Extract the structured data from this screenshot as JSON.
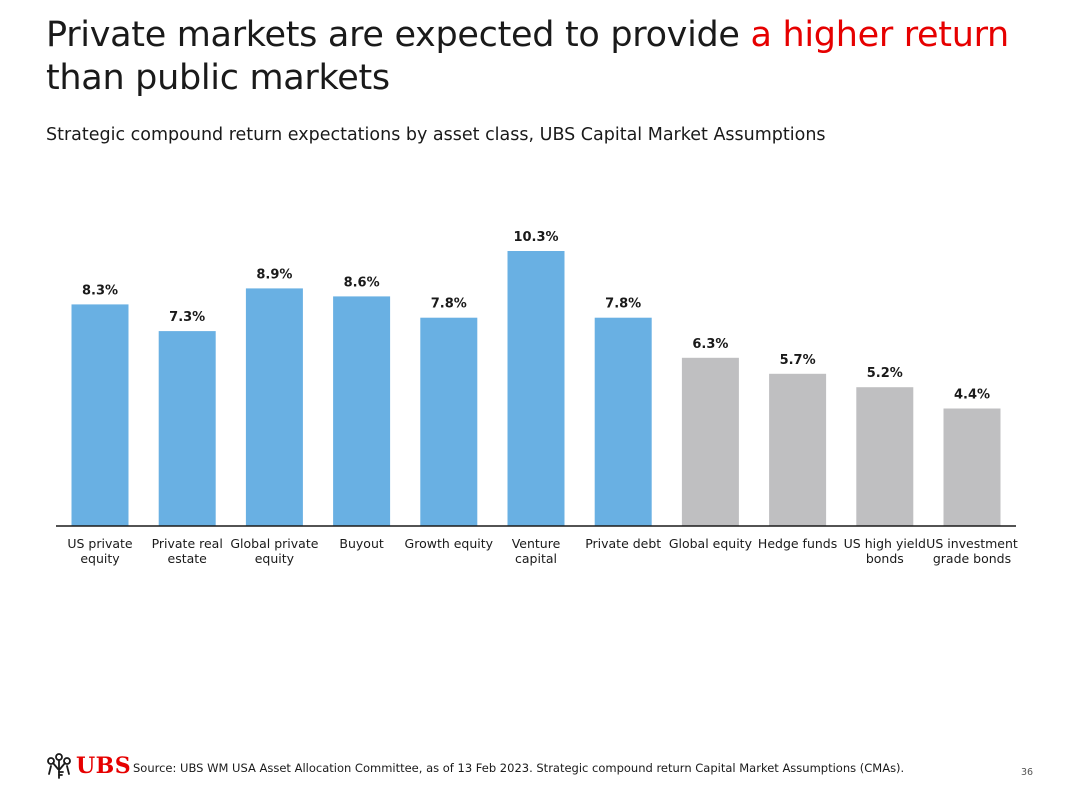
{
  "title": {
    "part1": "Private markets are expected to provide ",
    "highlight": "a higher return",
    "part2": " than public markets"
  },
  "subtitle": "Strategic compound return expectations by asset class, UBS Capital Market Assumptions",
  "colors": {
    "private": "#69b0e3",
    "public": "#bfbfc1",
    "highlight": "#e60000",
    "axis": "#1a1a1a"
  },
  "chart_data": {
    "type": "bar",
    "categories": [
      [
        "US private",
        "equity"
      ],
      [
        "Private real",
        "estate"
      ],
      [
        "Global private",
        "equity"
      ],
      [
        "Buyout"
      ],
      [
        "Growth equity"
      ],
      [
        "Venture",
        "capital"
      ],
      [
        "Private debt"
      ],
      [
        "Global equity"
      ],
      [
        "Hedge funds"
      ],
      [
        "US high yield",
        "bonds"
      ],
      [
        "US investment",
        "grade bonds"
      ]
    ],
    "values": [
      8.3,
      7.3,
      8.9,
      8.6,
      7.8,
      10.3,
      7.8,
      6.3,
      5.7,
      5.2,
      4.4
    ],
    "data_labels": [
      "8.3%",
      "7.3%",
      "8.9%",
      "8.6%",
      "7.8%",
      "10.3%",
      "7.8%",
      "6.3%",
      "5.7%",
      "5.2%",
      "4.4%"
    ],
    "bar_group": [
      "private",
      "private",
      "private",
      "private",
      "private",
      "private",
      "private",
      "public",
      "public",
      "public",
      "public"
    ],
    "ylim": [
      0,
      10.3
    ],
    "grid": false,
    "legend": "none",
    "xlabel": "",
    "ylabel": ""
  },
  "footer": {
    "logo_text": "UBS",
    "source": "Source: UBS WM USA Asset Allocation Committee, as of 13 Feb 2023. Strategic compound return Capital Market Assumptions (CMAs).",
    "page_number": "36"
  }
}
